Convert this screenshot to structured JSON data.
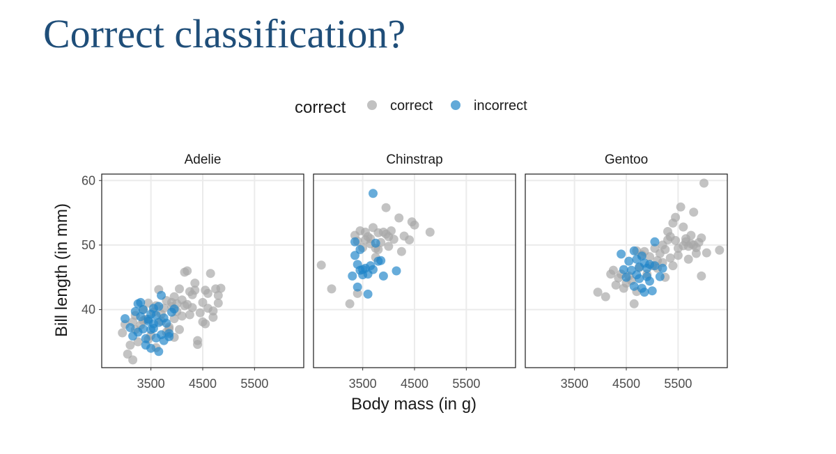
{
  "slide": {
    "title": "Correct classification?"
  },
  "chart_data": {
    "type": "scatter",
    "xlabel": "Body mass (in g)",
    "ylabel": "Bill length (in mm)",
    "xlim": [
      2550,
      6450
    ],
    "ylim": [
      31,
      61
    ],
    "xticks": [
      3500,
      4500,
      5500
    ],
    "yticks": [
      40,
      50,
      60
    ],
    "grid": true,
    "legend": {
      "title": "correct",
      "position": "top",
      "items": [
        {
          "label": "correct",
          "color": "#a6a6a6"
        },
        {
          "label": "incorrect",
          "color": "#1f85c8"
        }
      ]
    },
    "panels": [
      {
        "label": "Adelie",
        "correct": [
          [
            2950,
            36.4
          ],
          [
            3000,
            37.7
          ],
          [
            3050,
            33.1
          ],
          [
            3100,
            34.5
          ],
          [
            3150,
            32.2
          ],
          [
            3150,
            38.1
          ],
          [
            3200,
            36.9
          ],
          [
            3200,
            39.1
          ],
          [
            3250,
            35.0
          ],
          [
            3300,
            37.6
          ],
          [
            3350,
            40.0
          ],
          [
            3400,
            38.5
          ],
          [
            3450,
            41.0
          ],
          [
            3500,
            36.0
          ],
          [
            3550,
            39.6
          ],
          [
            3600,
            40.6
          ],
          [
            3650,
            43.1
          ],
          [
            3700,
            38.2
          ],
          [
            3750,
            40.2
          ],
          [
            3800,
            41.4
          ],
          [
            3850,
            37.3
          ],
          [
            3900,
            40.5
          ],
          [
            3950,
            42.0
          ],
          [
            3950,
            38.6
          ],
          [
            4000,
            39.7
          ],
          [
            4050,
            43.2
          ],
          [
            4100,
            41.5
          ],
          [
            4150,
            45.8
          ],
          [
            4200,
            46.0
          ],
          [
            4200,
            40.8
          ],
          [
            4250,
            39.2
          ],
          [
            4300,
            42.3
          ],
          [
            4350,
            44.1
          ],
          [
            4400,
            35.2
          ],
          [
            4450,
            39.5
          ],
          [
            4500,
            41.1
          ],
          [
            4550,
            37.8
          ],
          [
            4600,
            42.5
          ],
          [
            4650,
            45.6
          ],
          [
            4700,
            39.8
          ],
          [
            4750,
            43.2
          ],
          [
            4800,
            41.0
          ],
          [
            4850,
            43.3
          ],
          [
            4400,
            34.6
          ],
          [
            4050,
            36.9
          ],
          [
            3900,
            41.1
          ],
          [
            4500,
            38.1
          ],
          [
            4300,
            40.3
          ],
          [
            4600,
            40.2
          ],
          [
            4700,
            38.8
          ],
          [
            3800,
            36.5
          ],
          [
            4250,
            42.8
          ],
          [
            4150,
            40.6
          ],
          [
            4350,
            43.0
          ],
          [
            3850,
            37.0
          ],
          [
            3950,
            35.7
          ],
          [
            3700,
            39.3
          ],
          [
            4100,
            39.0
          ],
          [
            4550,
            43.0
          ],
          [
            4000,
            40.9
          ],
          [
            3600,
            34.1
          ],
          [
            3450,
            35.4
          ],
          [
            3350,
            38.3
          ],
          [
            4800,
            42.2
          ]
        ],
        "incorrect": [
          [
            3000,
            38.6
          ],
          [
            3100,
            37.2
          ],
          [
            3150,
            35.9
          ],
          [
            3200,
            39.7
          ],
          [
            3250,
            36.5
          ],
          [
            3300,
            38.9
          ],
          [
            3300,
            41.1
          ],
          [
            3350,
            37.0
          ],
          [
            3400,
            35.5
          ],
          [
            3400,
            34.5
          ],
          [
            3450,
            38.2
          ],
          [
            3500,
            34.0
          ],
          [
            3500,
            36.9
          ],
          [
            3550,
            40.2
          ],
          [
            3550,
            37.8
          ],
          [
            3600,
            39.1
          ],
          [
            3600,
            35.6
          ],
          [
            3650,
            38.0
          ],
          [
            3650,
            33.5
          ],
          [
            3700,
            36.1
          ],
          [
            3750,
            38.7
          ],
          [
            3750,
            35.2
          ],
          [
            3800,
            37.9
          ],
          [
            3850,
            36.3
          ],
          [
            3900,
            39.6
          ],
          [
            3850,
            35.8
          ],
          [
            3700,
            42.2
          ],
          [
            3950,
            40.1
          ],
          [
            3450,
            38.5
          ],
          [
            3250,
            40.9
          ],
          [
            3550,
            37.1
          ],
          [
            3350,
            40.0
          ],
          [
            3500,
            39.3
          ],
          [
            3650,
            40.5
          ]
        ]
      },
      {
        "label": "Chinstrap",
        "correct": [
          [
            2700,
            46.9
          ],
          [
            2900,
            43.2
          ],
          [
            3250,
            40.9
          ],
          [
            3350,
            51.5
          ],
          [
            3400,
            50.6
          ],
          [
            3450,
            52.2
          ],
          [
            3500,
            49.6
          ],
          [
            3550,
            50.8
          ],
          [
            3600,
            51.3
          ],
          [
            3650,
            50.2
          ],
          [
            3700,
            52.7
          ],
          [
            3750,
            49.5
          ],
          [
            3800,
            51.9
          ],
          [
            3850,
            50.4
          ],
          [
            3900,
            52.0
          ],
          [
            3950,
            51.7
          ],
          [
            3950,
            55.8
          ],
          [
            4000,
            49.8
          ],
          [
            4050,
            52.2
          ],
          [
            4100,
            50.9
          ],
          [
            4200,
            54.2
          ],
          [
            4250,
            49.0
          ],
          [
            4300,
            51.4
          ],
          [
            4400,
            50.8
          ],
          [
            4450,
            53.6
          ],
          [
            4500,
            53.1
          ],
          [
            4800,
            52.0
          ],
          [
            3400,
            42.5
          ],
          [
            3750,
            48.1
          ],
          [
            3650,
            51.0
          ],
          [
            3550,
            52.0
          ],
          [
            3800,
            49.3
          ],
          [
            4000,
            51.3
          ]
        ],
        "incorrect": [
          [
            3300,
            45.2
          ],
          [
            3350,
            50.5
          ],
          [
            3400,
            47.0
          ],
          [
            3400,
            43.5
          ],
          [
            3450,
            46.1
          ],
          [
            3500,
            45.4
          ],
          [
            3550,
            46.4
          ],
          [
            3600,
            45.5
          ],
          [
            3600,
            42.4
          ],
          [
            3650,
            46.8
          ],
          [
            3700,
            46.2
          ],
          [
            3750,
            50.3
          ],
          [
            3800,
            47.5
          ],
          [
            3850,
            47.6
          ],
          [
            3900,
            45.2
          ],
          [
            4150,
            46.0
          ],
          [
            3700,
            58.0
          ],
          [
            3350,
            48.4
          ],
          [
            3500,
            46.2
          ],
          [
            3450,
            49.3
          ]
        ]
      },
      {
        "label": "Gentoo",
        "correct": [
          [
            3950,
            42.7
          ],
          [
            4100,
            42.0
          ],
          [
            4200,
            45.5
          ],
          [
            4250,
            46.1
          ],
          [
            4300,
            43.8
          ],
          [
            4350,
            44.9
          ],
          [
            4400,
            45.5
          ],
          [
            4450,
            43.3
          ],
          [
            4500,
            44.1
          ],
          [
            4550,
            45.2
          ],
          [
            4600,
            44.5
          ],
          [
            4650,
            40.9
          ],
          [
            4700,
            42.8
          ],
          [
            4700,
            49.1
          ],
          [
            4750,
            46.5
          ],
          [
            4800,
            48.5
          ],
          [
            4850,
            49.0
          ],
          [
            4900,
            45.5
          ],
          [
            4950,
            48.2
          ],
          [
            5000,
            46.8
          ],
          [
            5050,
            49.5
          ],
          [
            5100,
            46.4
          ],
          [
            5150,
            48.7
          ],
          [
            5200,
            50.0
          ],
          [
            5250,
            49.3
          ],
          [
            5300,
            52.1
          ],
          [
            5350,
            51.3
          ],
          [
            5400,
            53.4
          ],
          [
            5450,
            50.7
          ],
          [
            5500,
            49.5
          ],
          [
            5550,
            55.9
          ],
          [
            5600,
            52.8
          ],
          [
            5650,
            51.0
          ],
          [
            5700,
            49.8
          ],
          [
            5750,
            50.2
          ],
          [
            5800,
            55.1
          ],
          [
            5850,
            48.7
          ],
          [
            5900,
            50.4
          ],
          [
            5950,
            45.2
          ],
          [
            6000,
            59.6
          ],
          [
            6300,
            49.2
          ],
          [
            5600,
            49.9
          ],
          [
            5350,
            48.0
          ],
          [
            5700,
            47.8
          ],
          [
            5200,
            47.3
          ],
          [
            5450,
            54.3
          ],
          [
            5850,
            49.6
          ],
          [
            5300,
            50.8
          ],
          [
            5100,
            47.6
          ],
          [
            5500,
            48.4
          ],
          [
            6050,
            48.8
          ],
          [
            5950,
            51.1
          ],
          [
            5750,
            51.5
          ],
          [
            5400,
            46.8
          ],
          [
            5250,
            45.0
          ],
          [
            5650,
            50.5
          ],
          [
            5800,
            50.0
          ]
        ],
        "incorrect": [
          [
            4400,
            48.6
          ],
          [
            4450,
            46.2
          ],
          [
            4500,
            45.0
          ],
          [
            4550,
            47.5
          ],
          [
            4600,
            46.1
          ],
          [
            4650,
            43.6
          ],
          [
            4650,
            49.1
          ],
          [
            4700,
            45.4
          ],
          [
            4700,
            47.8
          ],
          [
            4750,
            46.6
          ],
          [
            4800,
            43.3
          ],
          [
            4800,
            48.3
          ],
          [
            4850,
            47.2
          ],
          [
            4900,
            45.1
          ],
          [
            4900,
            46.4
          ],
          [
            4950,
            44.4
          ],
          [
            5000,
            42.9
          ],
          [
            5050,
            50.5
          ],
          [
            5050,
            46.8
          ],
          [
            5150,
            45.1
          ],
          [
            5200,
            46.4
          ],
          [
            4850,
            42.7
          ],
          [
            4950,
            47.0
          ],
          [
            4750,
            44.8
          ]
        ]
      }
    ]
  }
}
